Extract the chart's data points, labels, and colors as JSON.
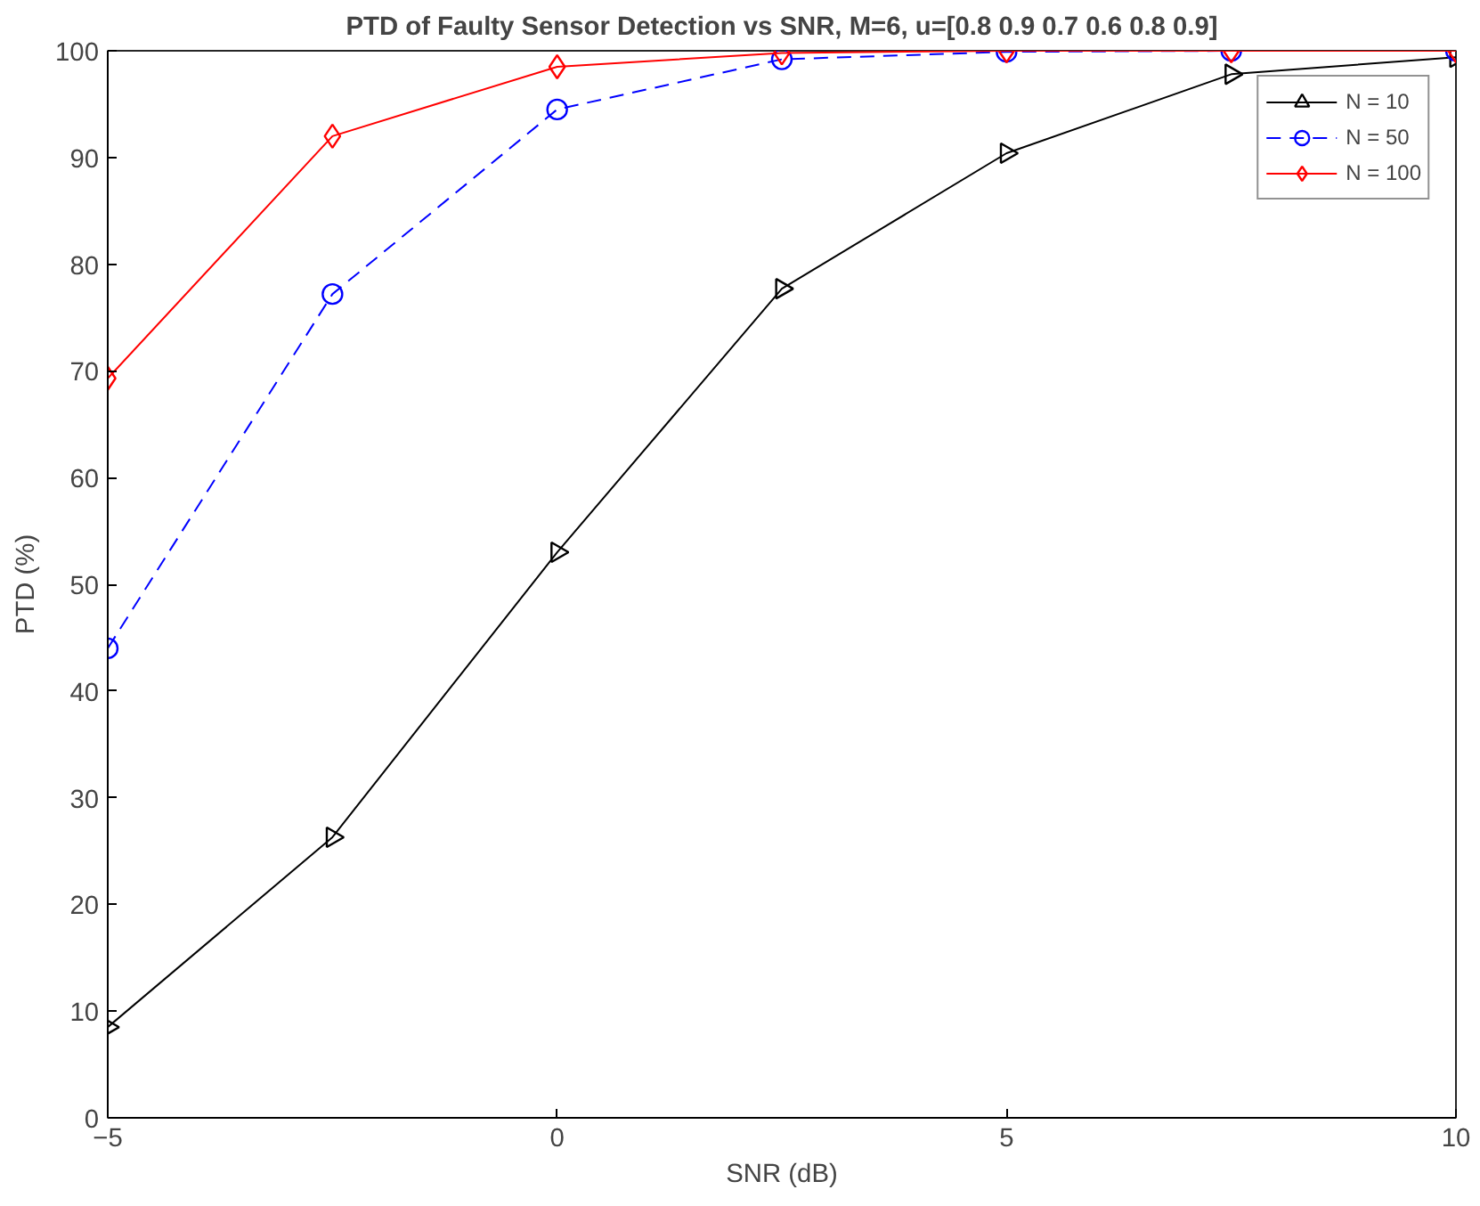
{
  "chart_data": {
    "type": "line",
    "title": "PTD of Faulty Sensor Detection vs SNR, M=6, u=[0.8 0.9 0.7 0.6 0.8 0.9]",
    "xlabel": "SNR (dB)",
    "ylabel": "PTD (%)",
    "x": [
      -5,
      -2.5,
      0,
      2.5,
      5,
      7.5,
      10
    ],
    "xlim": [
      -5,
      10
    ],
    "xticks": [
      -5,
      0,
      5,
      10
    ],
    "ylim": [
      0,
      100
    ],
    "yticks": [
      0,
      10,
      20,
      30,
      40,
      50,
      60,
      70,
      80,
      90,
      100
    ],
    "grid": false,
    "legend": "top right",
    "series": [
      {
        "name": "N = 10",
        "color": "#000000",
        "marker": "triangle",
        "line_style": "solid",
        "values": [
          8.5,
          26.3,
          53.0,
          77.7,
          90.4,
          97.8,
          99.4
        ]
      },
      {
        "name": "N = 50",
        "color": "#0000ff",
        "marker": "circle",
        "line_style": "dashed",
        "values": [
          44.0,
          77.2,
          94.5,
          99.2,
          99.9,
          100,
          100
        ]
      },
      {
        "name": "N = 100",
        "color": "#ff0000",
        "marker": "diamond",
        "line_style": "solid",
        "values": [
          69.3,
          92.0,
          98.5,
          99.8,
          100,
          100,
          100
        ]
      }
    ]
  }
}
